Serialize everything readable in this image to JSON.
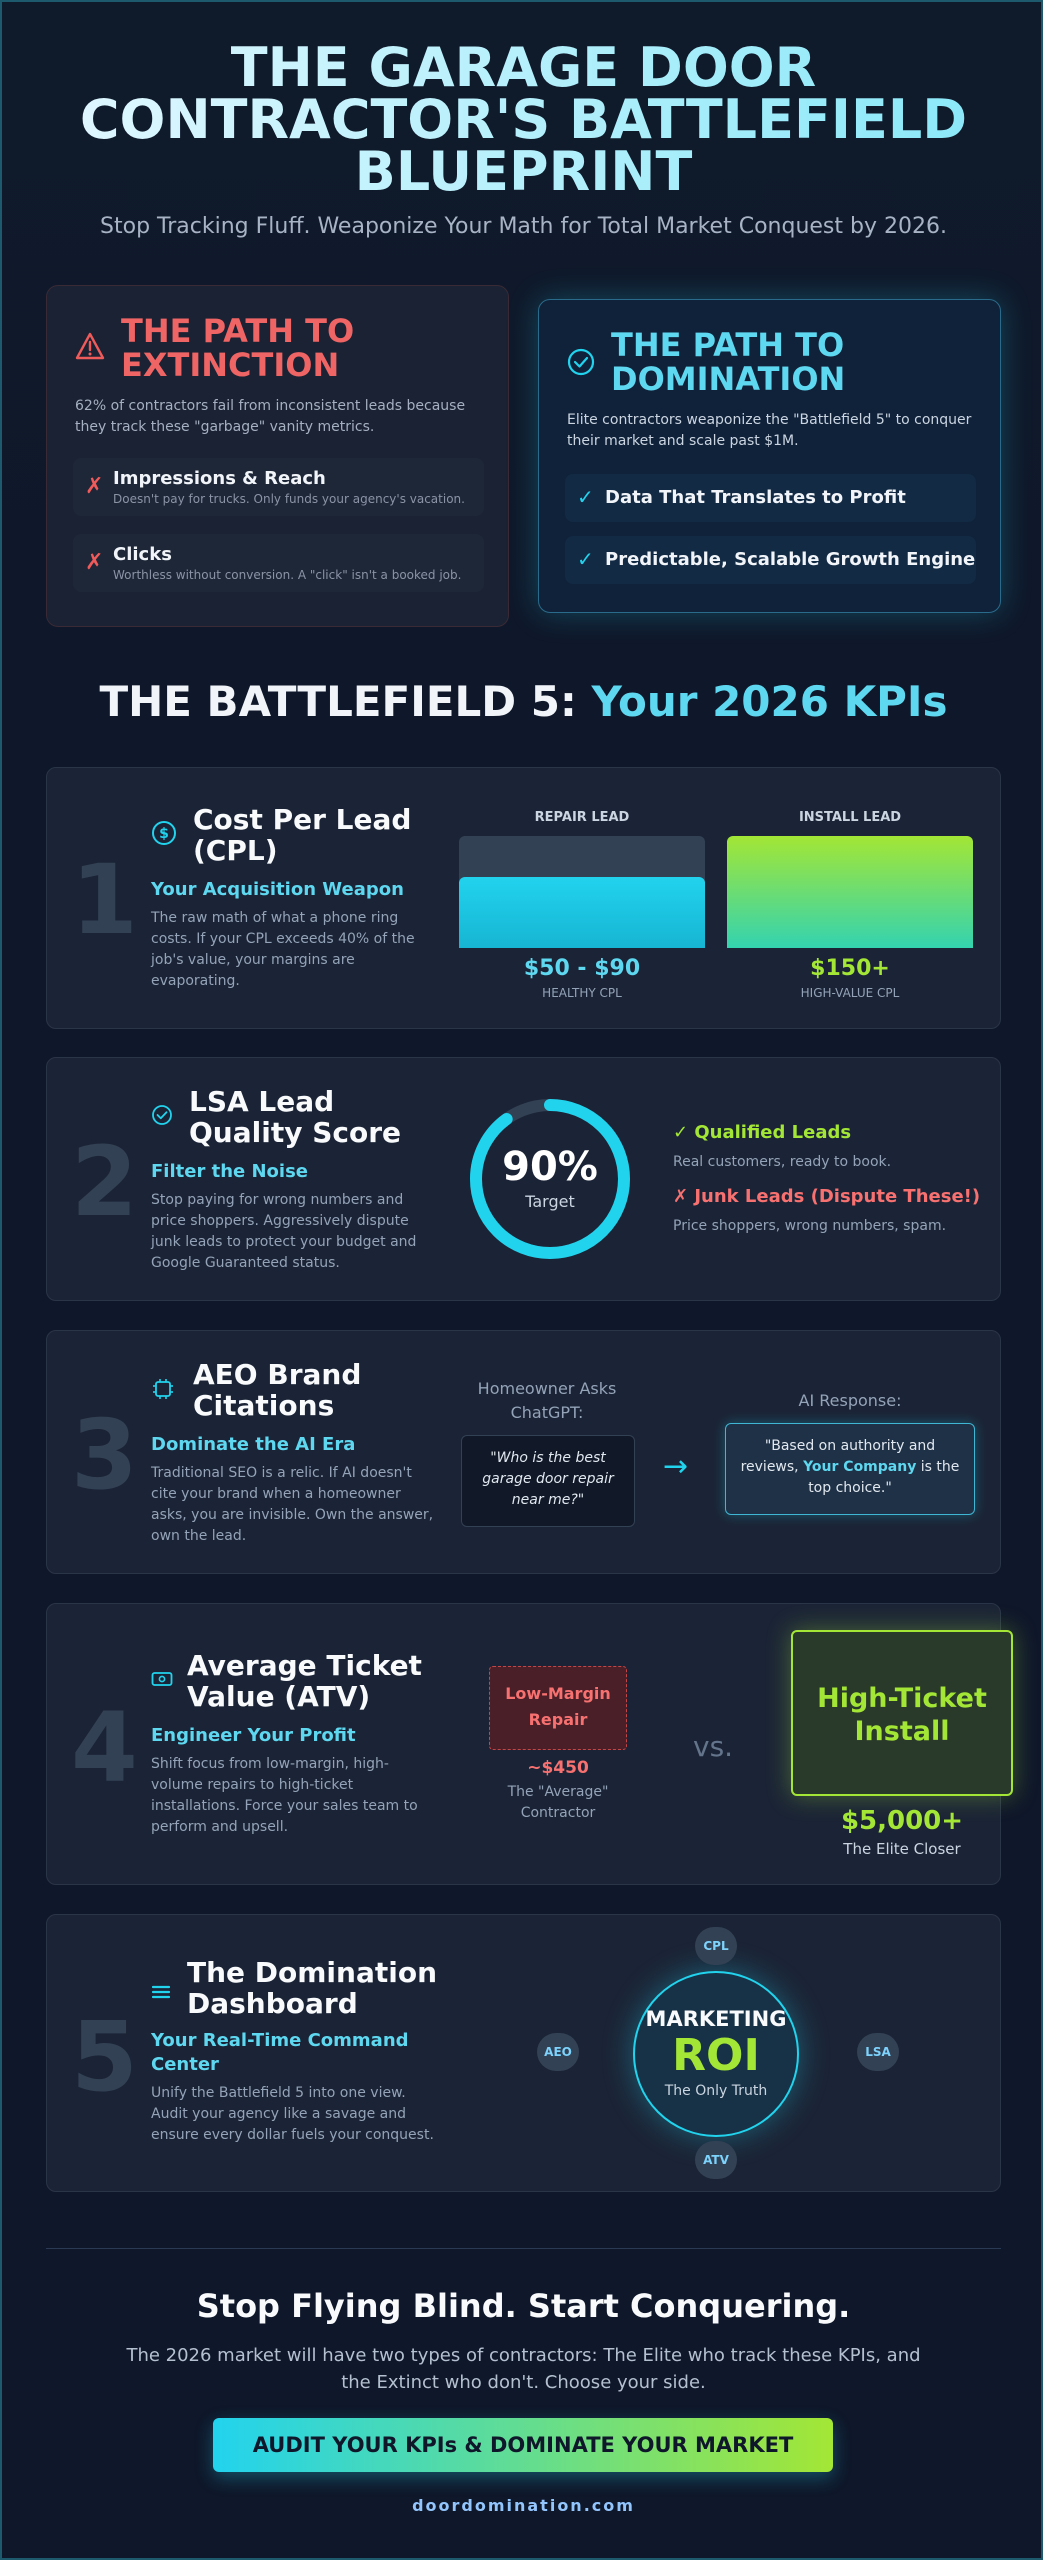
{
  "hero": {
    "title": "THE GARAGE DOOR CONTRACTOR'S BATTLEFIELD BLUEPRINT",
    "subtitle": "Stop Tracking Fluff. Weaponize Your Math for Total Market Conquest by 2026."
  },
  "extinction": {
    "title": "THE PATH TO EXTINCTION",
    "description": "62% of contractors fail from inconsistent leads because they track these \"garbage\" vanity metrics.",
    "icon": "warning-icon",
    "items": [
      {
        "mark": "✗",
        "title": "Impressions & Reach",
        "sub": "Doesn't pay for trucks. Only funds your agency's vacation."
      },
      {
        "mark": "✗",
        "title": "Clicks",
        "sub": "Worthless without conversion. A \"click\" isn't a booked job."
      }
    ]
  },
  "domination": {
    "title": "THE PATH TO DOMINATION",
    "description": "Elite contractors weaponize the \"Battlefield 5\" to conquer their market and scale past $1M.",
    "icon": "check-circle-icon",
    "items": [
      {
        "mark": "✓",
        "title": "Data That Translates to Profit"
      },
      {
        "mark": "✓",
        "title": "Predictable, Scalable Growth Engine"
      }
    ]
  },
  "section": {
    "part_a": "THE BATTLEFIELD 5:",
    "part_b": "Your 2026 KPIs"
  },
  "kpis": [
    {
      "number": "1",
      "icon": "dollar-circle-icon",
      "title": "Cost Per Lead (CPL)",
      "subtitle": "Your Acquisition Weapon",
      "description": "The raw math of what a phone ring costs. If your CPL exceeds 40% of the job's value, your margins are evaporating.",
      "repair": {
        "label": "REPAIR LEAD",
        "price": "$50 - $90",
        "caption": "HEALTHY CPL",
        "fill": 0.63
      },
      "install": {
        "label": "INSTALL LEAD",
        "price": "$150+",
        "caption": "HIGH-VALUE CPL",
        "fill": 1.0
      }
    },
    {
      "number": "2",
      "icon": "check-circle-icon",
      "title": "LSA Lead Quality Score",
      "subtitle": "Filter the Noise",
      "description": "Stop paying for wrong numbers and price shoppers. Aggressively dispute junk leads to protect your budget and Google Guaranteed status.",
      "gauge": {
        "value": "90%",
        "label": "Target",
        "fraction": 0.9
      },
      "good": {
        "title": "✓ Qualified Leads",
        "desc": "Real customers, ready to book."
      },
      "bad": {
        "title": "✗ Junk Leads (Dispute These!)",
        "desc": "Price shoppers, wrong numbers, spam."
      }
    },
    {
      "number": "3",
      "icon": "chip-icon",
      "title": "AEO Brand Citations",
      "subtitle": "Dominate the AI Era",
      "description": "Traditional SEO is a relic. If AI doesn't cite your brand when a homeowner asks, you are invisible. Own the answer, own the lead.",
      "ask_label": "Homeowner Asks ChatGPT:",
      "question": "\"Who is the best garage door repair near me?\"",
      "response_label": "AI Response:",
      "answer_pre": "\"Based on authority and reviews,",
      "answer_highlight": "Your Company",
      "answer_post": "is the top choice.\""
    },
    {
      "number": "4",
      "icon": "cash-icon",
      "title": "Average Ticket Value (ATV)",
      "subtitle": "Engineer Your Profit",
      "description": "Shift focus from low-margin, high-volume repairs to high-ticket installations. Force your sales team to perform and upsell.",
      "low": {
        "label": "Low-Margin Repair",
        "price": "~$450",
        "caption": "The \"Average\" Contractor"
      },
      "vs": "vs.",
      "high": {
        "label": "High-Ticket Install",
        "price": "$5,000+",
        "caption": "The Elite Closer"
      }
    },
    {
      "number": "5",
      "icon": "list-icon",
      "title": "The Domination Dashboard",
      "subtitle": "Your Real-Time Command Center",
      "description": "Unify the Battlefield 5 into one view. Audit your agency like a savage and ensure every dollar fuels your conquest.",
      "roi": {
        "top": "MARKETING",
        "big": "ROI",
        "bottom": "The Only Truth"
      },
      "pills": [
        "CPL",
        "AEO",
        "LSA",
        "ATV"
      ]
    }
  ],
  "cta": {
    "title": "Stop Flying Blind. Start Conquering.",
    "description": "The 2026 market will have two types of contractors: The Elite who track these KPIs, and the Extinct who don't. Choose your side.",
    "button": "AUDIT YOUR KPIs & DOMINATE YOUR MARKET",
    "url": "doordomination.com"
  },
  "colors": {
    "accent": "#22d3ee",
    "lime": "#a3e635",
    "danger": "#ef5a5a",
    "bg": "#0f172a"
  }
}
